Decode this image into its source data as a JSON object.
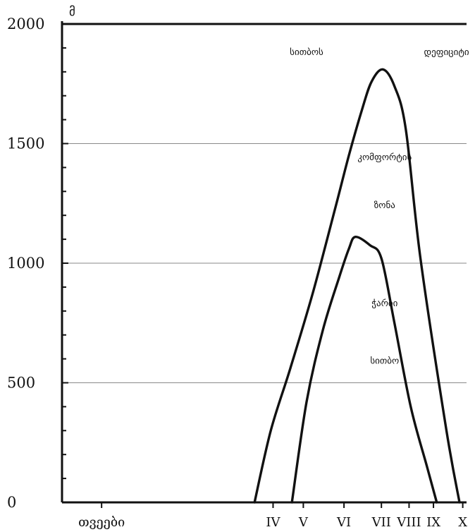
{
  "chart_data": {
    "type": "line",
    "y_unit": "მ",
    "ylim": [
      0,
      2000
    ],
    "y_ticks": [
      0,
      500,
      1000,
      1500,
      2000
    ],
    "y_tick_labels": [
      "0",
      "500",
      "1000",
      "1500",
      "2000"
    ],
    "xlim": [
      0,
      12
    ],
    "x_categories": [
      {
        "label": "თვეები",
        "x": 1
      },
      {
        "label": "IV",
        "x": 6.27
      },
      {
        "label": "V",
        "x": 7.2
      },
      {
        "label": "VI",
        "x": 8.45
      },
      {
        "label": "VII",
        "x": 9.6
      },
      {
        "label": "VIII",
        "x": 10.45
      },
      {
        "label": "IX",
        "x": 11.2
      },
      {
        "label": "X",
        "x": 12.1
      }
    ],
    "grid": true,
    "series": [
      {
        "points": [
          [
            5.7,
            0
          ],
          [
            6.2,
            300
          ],
          [
            6.8,
            560
          ],
          [
            7.5,
            880
          ],
          [
            8.2,
            1240
          ],
          [
            8.6,
            1450
          ],
          [
            9.0,
            1640
          ],
          [
            9.3,
            1760
          ],
          [
            9.65,
            1810
          ],
          [
            10.0,
            1740
          ],
          [
            10.35,
            1560
          ],
          [
            10.8,
            1020
          ],
          [
            11.6,
            300
          ],
          [
            12.0,
            0
          ]
        ]
      },
      {
        "points": [
          [
            6.85,
            0
          ],
          [
            7.3,
            420
          ],
          [
            7.8,
            720
          ],
          [
            8.3,
            940
          ],
          [
            8.6,
            1060
          ],
          [
            8.8,
            1110
          ],
          [
            9.25,
            1075
          ],
          [
            9.6,
            1020
          ],
          [
            10.0,
            750
          ],
          [
            10.5,
            400
          ],
          [
            11.0,
            150
          ],
          [
            11.3,
            0
          ]
        ]
      }
    ],
    "annotations": [
      {
        "text": "სითბოს",
        "x": 7.3,
        "y": 1870
      },
      {
        "text": "დეფიციტი",
        "x": 11.6,
        "y": 1870
      },
      {
        "text": "კომფორტის",
        "x": 9.7,
        "y": 1430
      },
      {
        "text": "ზონა",
        "x": 9.7,
        "y": 1230
      },
      {
        "text": "ჭარბი",
        "x": 9.7,
        "y": 820
      },
      {
        "text": "სითბო",
        "x": 9.7,
        "y": 580
      }
    ]
  }
}
